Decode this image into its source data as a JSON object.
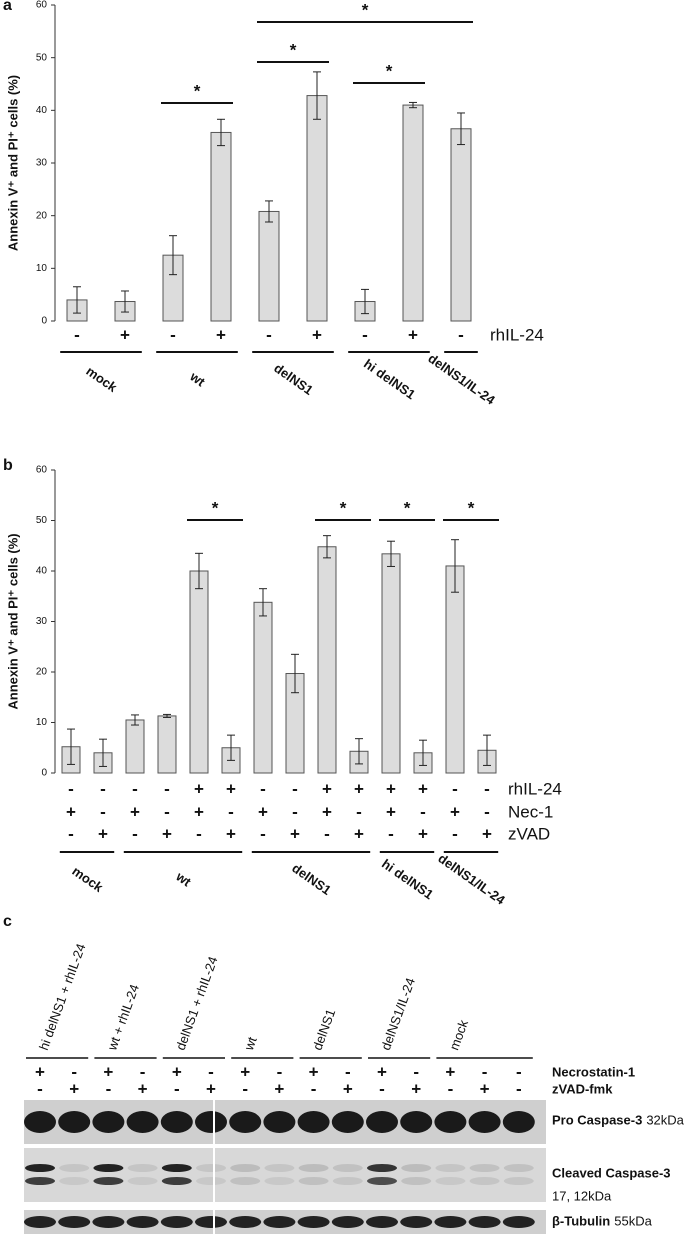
{
  "panels": [
    "a",
    "b",
    "c"
  ],
  "chart_data": [
    {
      "type": "bar",
      "ylabel": "Annexin V⁺ and PI⁺ cells (%)",
      "ylim": [
        0,
        60
      ],
      "yticks": [
        0,
        10,
        20,
        30,
        40,
        50,
        60
      ],
      "color": "#dcdcdc",
      "categories": [
        "mock",
        "mock",
        "wt",
        "wt",
        "delNS1",
        "delNS1",
        "hi delNS1",
        "hi delNS1",
        "delNS1/IL-24"
      ],
      "values": [
        4,
        3.7,
        12.5,
        35.8,
        20.8,
        42.8,
        3.7,
        41,
        36.5
      ],
      "errors": [
        2.5,
        2,
        3.7,
        2.5,
        2,
        4.5,
        2.3,
        0.5,
        3
      ],
      "rows": [
        {
          "name": "rhIL-24",
          "values": [
            "-",
            "+",
            "-",
            "+",
            "-",
            "+",
            "-",
            "+",
            "-"
          ]
        }
      ],
      "significance": [
        {
          "label": "*",
          "from": 2,
          "to": 3
        },
        {
          "label": "*",
          "from": 4,
          "to": 5
        },
        {
          "label": "*",
          "from": 6,
          "to": 7
        },
        {
          "label": "*",
          "from": 4,
          "to": 8
        }
      ]
    },
    {
      "type": "bar",
      "ylabel": "Annexin V⁺ and PI⁺ cells (%)",
      "ylim": [
        0,
        60
      ],
      "yticks": [
        0,
        10,
        20,
        30,
        40,
        50,
        60
      ],
      "color": "#dcdcdc",
      "categories": [
        "mock",
        "mock",
        "wt",
        "wt",
        "wt",
        "wt",
        "delNS1",
        "delNS1",
        "delNS1",
        "delNS1",
        "hi delNS1",
        "hi delNS1",
        "delNS1/IL-24",
        "delNS1/IL-24"
      ],
      "values": [
        5.2,
        4,
        10.5,
        11.3,
        40,
        5,
        33.8,
        19.7,
        44.8,
        4.3,
        43.4,
        4,
        41,
        4.5
      ],
      "errors": [
        3.5,
        2.7,
        1,
        0.3,
        3.5,
        2.5,
        2.7,
        3.8,
        2.2,
        2.5,
        2.5,
        2.5,
        5.2,
        3
      ],
      "rows": [
        {
          "name": "rhIL-24",
          "values": [
            "-",
            "-",
            "-",
            "-",
            "+",
            "+",
            "-",
            "-",
            "+",
            "+",
            "+",
            "+",
            "-",
            "-"
          ]
        },
        {
          "name": "Nec-1",
          "values": [
            "+",
            "-",
            "+",
            "-",
            "+",
            "-",
            "+",
            "-",
            "+",
            "-",
            "+",
            "-",
            "+",
            "-"
          ]
        },
        {
          "name": "zVAD",
          "values": [
            "-",
            "+",
            "-",
            "+",
            "-",
            "+",
            "-",
            "+",
            "-",
            "+",
            "-",
            "+",
            "-",
            "+"
          ]
        }
      ],
      "significance": [
        {
          "label": "*",
          "from": 4,
          "to": 5
        },
        {
          "label": "*",
          "from": 8,
          "to": 9
        },
        {
          "label": "*",
          "from": 10,
          "to": 11
        },
        {
          "label": "*",
          "from": 12,
          "to": 13
        }
      ]
    }
  ],
  "blot": {
    "groups": [
      {
        "label": "hi delNS1 + rhIL-24",
        "necrostatin": [
          "+",
          "-"
        ],
        "zvad": [
          "-",
          "+"
        ]
      },
      {
        "label": "wt + rhIL-24",
        "necrostatin": [
          "+",
          "-"
        ],
        "zvad": [
          "-",
          "+"
        ]
      },
      {
        "label": "delNS1 + rhIL-24",
        "necrostatin": [
          "+",
          "-"
        ],
        "zvad": [
          "-",
          "+"
        ]
      },
      {
        "label": "wt",
        "necrostatin": [
          "+",
          "-"
        ],
        "zvad": [
          "-",
          "+"
        ]
      },
      {
        "label": "delNS1",
        "necrostatin": [
          "+",
          "-"
        ],
        "zvad": [
          "-",
          "+"
        ]
      },
      {
        "label": "delNS1/IL-24",
        "necrostatin": [
          "+",
          "-"
        ],
        "zvad": [
          "-",
          "+"
        ]
      },
      {
        "label": "mock",
        "necrostatin": [
          "+",
          "-",
          "-"
        ],
        "zvad": [
          "-",
          "+",
          "-"
        ]
      }
    ],
    "row_labels": [
      "Necrostatin-1",
      "zVAD-fmk"
    ],
    "bands": [
      {
        "name": "Pro Caspase-3",
        "size": "32kDa"
      },
      {
        "name": "Cleaved Caspase-3",
        "size": "17, 12kDa"
      },
      {
        "name": "β-Tubulin",
        "size": "55kDa"
      }
    ]
  }
}
